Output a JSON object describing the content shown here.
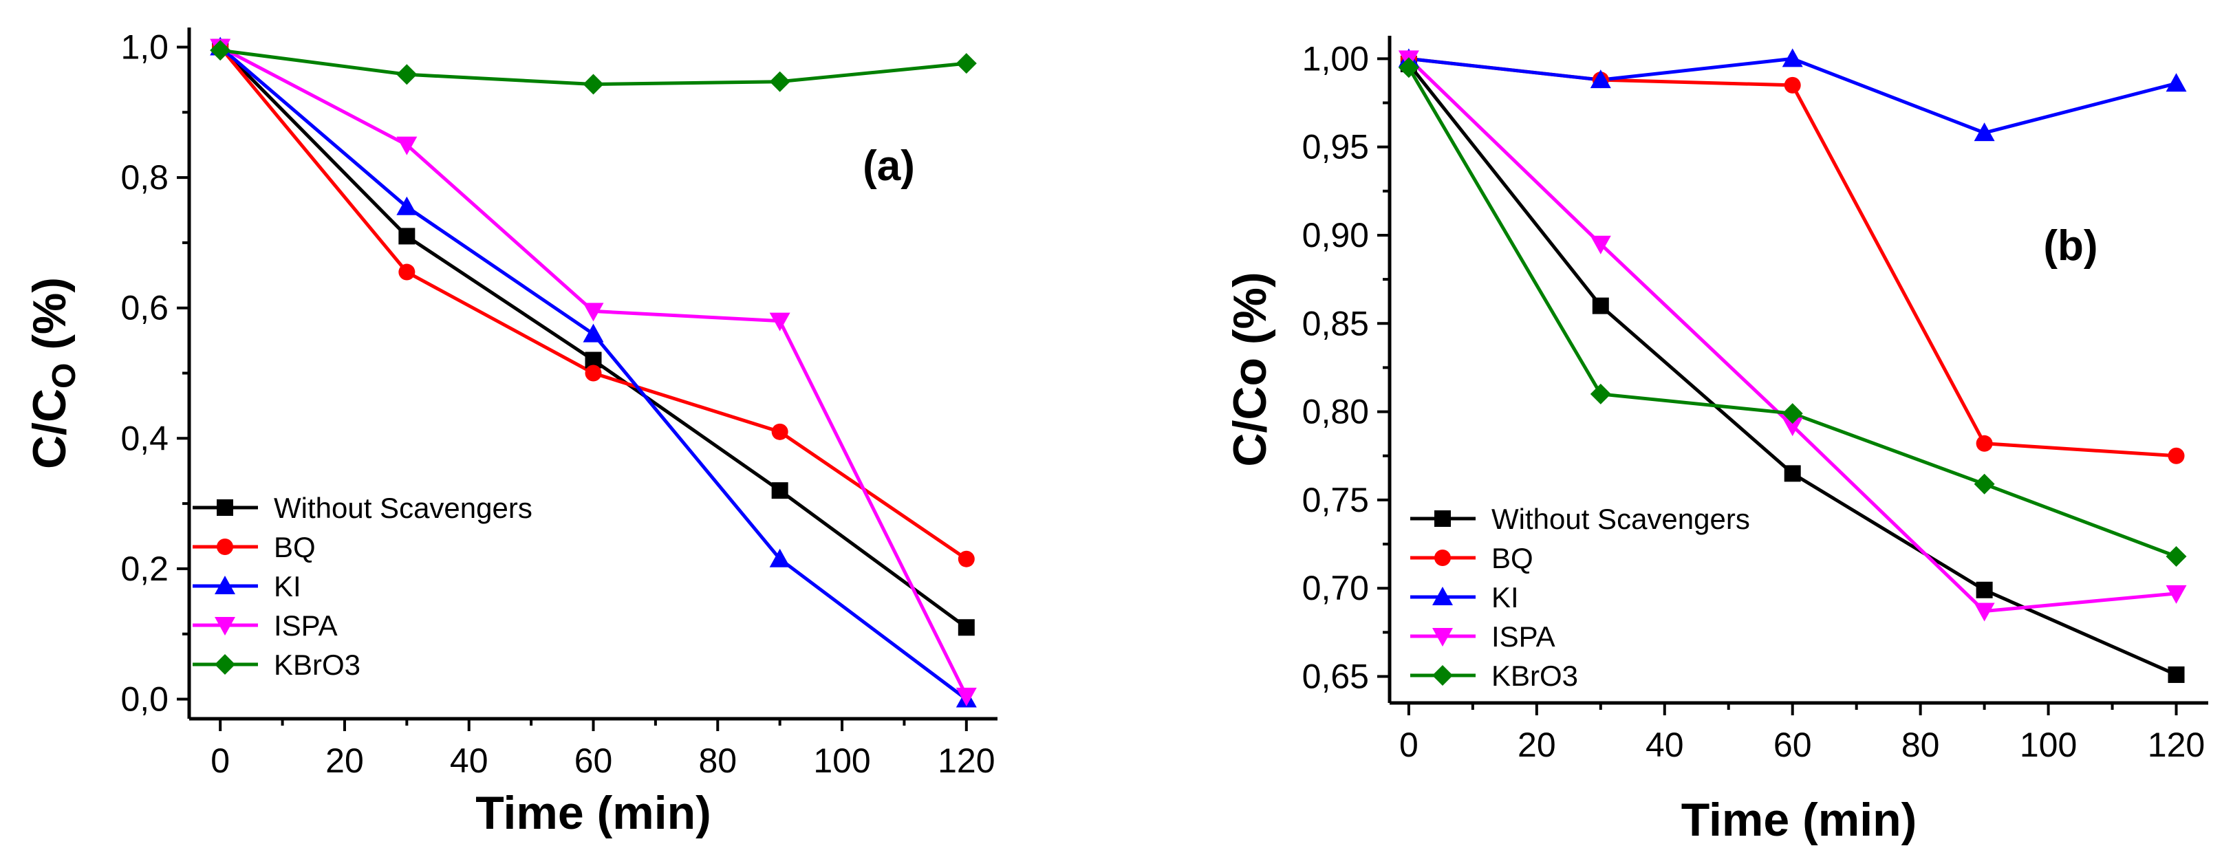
{
  "chart_data": [
    {
      "type": "line",
      "panel": "(a)",
      "title": "",
      "xlabel": "Time (min)",
      "ylabel": "C/C",
      "ylabel_sub": "O",
      "ylabel_suffix": " (%)",
      "xlim": [
        -5,
        125
      ],
      "ylim": [
        -0.03,
        1.03
      ],
      "x_ticks": [
        0,
        20,
        40,
        60,
        80,
        100,
        120
      ],
      "y_ticks": [
        0.0,
        0.2,
        0.4,
        0.6,
        0.8,
        1.0
      ],
      "y_tick_labels": [
        "0,0",
        "0,2",
        "0,4",
        "0,6",
        "0,8",
        "1,0"
      ],
      "legend_position": "bottom-left",
      "x": [
        0,
        30,
        60,
        90,
        120
      ],
      "series": [
        {
          "name": "Without Scavengers",
          "color": "#000000",
          "marker": "square",
          "values": [
            1.0,
            0.71,
            0.52,
            0.32,
            0.11
          ]
        },
        {
          "name": "BQ",
          "color": "#ff0000",
          "marker": "circle",
          "values": [
            1.0,
            0.655,
            0.5,
            0.41,
            0.215
          ]
        },
        {
          "name": "KI",
          "color": "#0000ff",
          "marker": "triangle-up",
          "values": [
            1.0,
            0.755,
            0.56,
            0.215,
            0.0
          ]
        },
        {
          "name": "ISPA",
          "color": "#ff00ff",
          "marker": "triangle-down",
          "values": [
            1.0,
            0.85,
            0.595,
            0.58,
            0.005
          ]
        },
        {
          "name": "KBrO3",
          "color": "#008000",
          "marker": "diamond",
          "values": [
            0.995,
            0.958,
            0.943,
            0.947,
            0.975
          ]
        }
      ]
    },
    {
      "type": "line",
      "panel": "(b)",
      "title": "",
      "xlabel": "Time (min)",
      "ylabel": "C/Co (%)",
      "xlim": [
        -3,
        125
      ],
      "ylim": [
        0.635,
        1.013
      ],
      "x_ticks": [
        0,
        20,
        40,
        60,
        80,
        100,
        120
      ],
      "y_ticks": [
        0.65,
        0.7,
        0.75,
        0.8,
        0.85,
        0.9,
        0.95,
        1.0
      ],
      "y_tick_labels": [
        "0,65",
        "0,70",
        "0,75",
        "0,80",
        "0,85",
        "0,90",
        "0,95",
        "1,00"
      ],
      "legend_position": "bottom-left",
      "x": [
        0,
        30,
        60,
        90,
        120
      ],
      "series": [
        {
          "name": "Without Scavengers",
          "color": "#000000",
          "marker": "square",
          "values": [
            0.997,
            0.86,
            0.765,
            0.699,
            0.651
          ]
        },
        {
          "name": "BQ",
          "color": "#ff0000",
          "marker": "circle",
          "values": [
            1.0,
            0.988,
            0.985,
            0.782,
            0.775
          ]
        },
        {
          "name": "KI",
          "color": "#0000ff",
          "marker": "triangle-up",
          "values": [
            1.0,
            0.988,
            1.0,
            0.958,
            0.986
          ]
        },
        {
          "name": "ISPA",
          "color": "#ff00ff",
          "marker": "triangle-down",
          "values": [
            1.0,
            0.895,
            0.792,
            0.687,
            0.697
          ]
        },
        {
          "name": "KBrO3",
          "color": "#008000",
          "marker": "diamond",
          "values": [
            0.995,
            0.81,
            0.799,
            0.759,
            0.718
          ]
        }
      ]
    }
  ]
}
